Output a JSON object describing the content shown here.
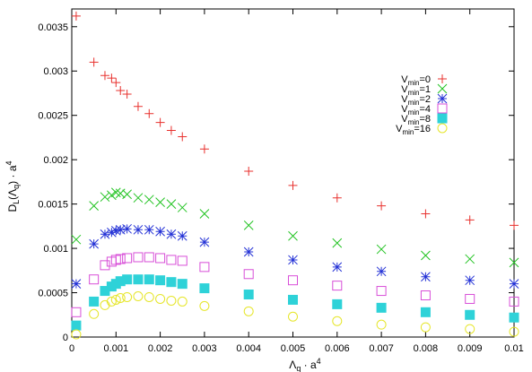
{
  "chart_data": {
    "type": "scatter",
    "xlabel_main": "Λ",
    "xlabel_sub": "q",
    "xlabel_rest": " · a",
    "xlabel_sup": "4",
    "ylabel_main": "D",
    "ylabel_sub": "L",
    "ylabel_mid": "(Λ",
    "ylabel_sub2": "q",
    "ylabel_rest": ") · a",
    "ylabel_sup": "4",
    "xlim": [
      0,
      0.01
    ],
    "ylim": [
      0,
      0.0037
    ],
    "x_ticks": [
      "0",
      "0.001",
      "0.002",
      "0.003",
      "0.004",
      "0.005",
      "0.006",
      "0.007",
      "0.008",
      "0.009",
      "0.01"
    ],
    "x_tick_values": [
      0,
      0.001,
      0.002,
      0.003,
      0.004,
      0.005,
      0.006,
      0.007,
      0.008,
      0.009,
      0.01
    ],
    "y_ticks": [
      "0",
      "0.0005",
      "0.001",
      "0.0015",
      "0.002",
      "0.0025",
      "0.003",
      "0.0035"
    ],
    "y_tick_values": [
      0,
      0.0005,
      0.001,
      0.0015,
      0.002,
      0.0025,
      0.003,
      0.0035
    ],
    "legend_position": "top-right",
    "series": [
      {
        "name_main": "V",
        "name_sub": "min",
        "name_rest": "=0",
        "marker": "plus",
        "color": "#e8302d",
        "x": [
          0.0001,
          0.0005,
          0.00075,
          0.0009,
          0.001,
          0.0011,
          0.00125,
          0.0015,
          0.00175,
          0.002,
          0.00225,
          0.0025,
          0.003,
          0.004,
          0.005,
          0.006,
          0.007,
          0.008,
          0.009,
          0.01
        ],
        "y": [
          0.00362,
          0.0031,
          0.00295,
          0.00292,
          0.00287,
          0.00278,
          0.00274,
          0.0026,
          0.00252,
          0.00242,
          0.00233,
          0.00226,
          0.00212,
          0.00187,
          0.00171,
          0.00157,
          0.00148,
          0.00139,
          0.00132,
          0.00126
        ]
      },
      {
        "name_main": "V",
        "name_sub": "min",
        "name_rest": "=1",
        "marker": "cross",
        "color": "#22c322",
        "x": [
          0.0001,
          0.0005,
          0.00075,
          0.0009,
          0.001,
          0.0011,
          0.00125,
          0.0015,
          0.00175,
          0.002,
          0.00225,
          0.0025,
          0.003,
          0.004,
          0.005,
          0.006,
          0.007,
          0.008,
          0.009,
          0.01
        ],
        "y": [
          0.0011,
          0.00148,
          0.00158,
          0.0016,
          0.00163,
          0.00162,
          0.00161,
          0.00157,
          0.00155,
          0.00152,
          0.0015,
          0.00146,
          0.00139,
          0.00126,
          0.00114,
          0.00106,
          0.00099,
          0.00092,
          0.00088,
          0.00084
        ]
      },
      {
        "name_main": "V",
        "name_sub": "min",
        "name_rest": "=2",
        "marker": "star",
        "color": "#2432d6",
        "x": [
          0.0001,
          0.0005,
          0.00075,
          0.0009,
          0.001,
          0.0011,
          0.00125,
          0.0015,
          0.00175,
          0.002,
          0.00225,
          0.0025,
          0.003,
          0.004,
          0.005,
          0.006,
          0.007,
          0.008,
          0.009,
          0.01
        ],
        "y": [
          0.0006,
          0.00105,
          0.00116,
          0.00118,
          0.0012,
          0.00121,
          0.00122,
          0.00121,
          0.00121,
          0.00119,
          0.00116,
          0.00114,
          0.00107,
          0.00096,
          0.00087,
          0.00079,
          0.00074,
          0.00068,
          0.00064,
          0.0006
        ]
      },
      {
        "name_main": "V",
        "name_sub": "min",
        "name_rest": "=4",
        "marker": "square-open",
        "color": "#d84fd8",
        "x": [
          0.0001,
          0.0005,
          0.00075,
          0.0009,
          0.001,
          0.0011,
          0.00125,
          0.0015,
          0.00175,
          0.002,
          0.00225,
          0.0025,
          0.003,
          0.004,
          0.005,
          0.006,
          0.007,
          0.008,
          0.009,
          0.01
        ],
        "y": [
          0.00028,
          0.00065,
          0.00081,
          0.00085,
          0.00087,
          0.00088,
          0.00089,
          0.0009,
          0.0009,
          0.00089,
          0.00087,
          0.00086,
          0.00079,
          0.00071,
          0.00064,
          0.00058,
          0.00052,
          0.00047,
          0.00043,
          0.0004
        ]
      },
      {
        "name_main": "V",
        "name_sub": "min",
        "name_rest": "=8",
        "marker": "square-filled",
        "color": "#2ed2d8",
        "x": [
          0.0001,
          0.0005,
          0.00075,
          0.0009,
          0.001,
          0.0011,
          0.00125,
          0.0015,
          0.00175,
          0.002,
          0.00225,
          0.0025,
          0.003,
          0.004,
          0.005,
          0.006,
          0.007,
          0.008,
          0.009,
          0.01
        ],
        "y": [
          0.00013,
          0.0004,
          0.00052,
          0.00057,
          0.0006,
          0.00063,
          0.00065,
          0.00065,
          0.00065,
          0.00064,
          0.00062,
          0.0006,
          0.00055,
          0.00048,
          0.00042,
          0.00037,
          0.00033,
          0.00028,
          0.00025,
          0.00022
        ]
      },
      {
        "name_main": "V",
        "name_sub": "min",
        "name_rest": "=16",
        "marker": "circle-open",
        "color": "#e6e62a",
        "x": [
          0.0001,
          0.0005,
          0.00075,
          0.0009,
          0.001,
          0.0011,
          0.00125,
          0.0015,
          0.00175,
          0.002,
          0.00225,
          0.0025,
          0.003,
          0.004,
          0.005,
          0.006,
          0.007,
          0.008,
          0.009,
          0.01
        ],
        "y": [
          3e-05,
          0.00026,
          0.00036,
          0.0004,
          0.00042,
          0.00044,
          0.00045,
          0.00046,
          0.00045,
          0.00043,
          0.00041,
          0.0004,
          0.00035,
          0.00029,
          0.00023,
          0.00018,
          0.00014,
          0.00011,
          9e-05,
          6e-05
        ]
      }
    ]
  }
}
